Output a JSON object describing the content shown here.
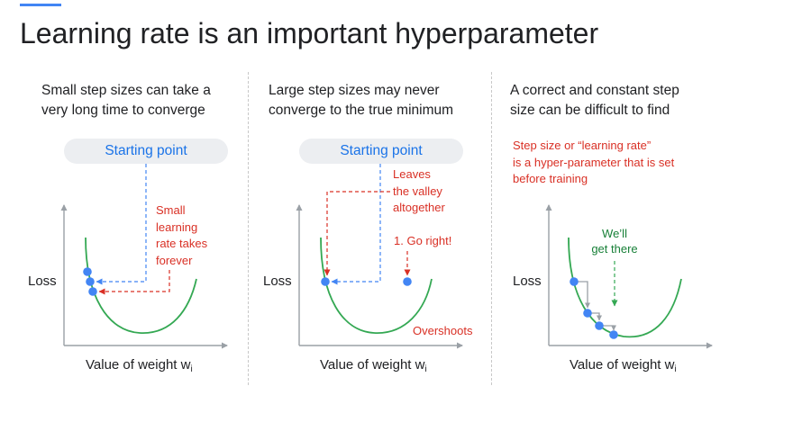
{
  "slide": {
    "title": "Learning rate is an important hyperparameter"
  },
  "panels": [
    {
      "caption_line1": "Small step sizes can take a",
      "caption_line2": "very long time to converge",
      "start_label": "Starting point",
      "annotation_lines": [
        "Small",
        "learning",
        "rate takes",
        "forever"
      ],
      "y_label": "Loss",
      "x_label": "Value of weight w",
      "x_subscript": "i"
    },
    {
      "caption_line1": "Large step sizes may never",
      "caption_line2": "converge to the true minimum",
      "start_label": "Starting point",
      "annotation_lines": [
        "Leaves",
        "the valley",
        "altogether"
      ],
      "step_label": "1. Go right!",
      "overshoot_label": "Overshoots",
      "y_label": "Loss",
      "x_label": "Value of weight w",
      "x_subscript": "i"
    },
    {
      "caption_line1": "A correct and constant step",
      "caption_line2": "size can be difficult to find",
      "note_lines": [
        "Step size or “learning rate”",
        "is a hyper-parameter that is set",
        "before training"
      ],
      "success_lines": [
        "We’ll",
        "get there"
      ],
      "y_label": "Loss",
      "x_label": "Value of weight w",
      "x_subscript": "i"
    }
  ],
  "colors": {
    "accent": "#4285f4",
    "curve": "#34a853",
    "point": "#4285f4",
    "start_path": "#4285f4",
    "red_text": "#d93025",
    "green_text": "#188038",
    "step_arrow": "#9aa0a6",
    "axis": "#9aa0a6"
  }
}
